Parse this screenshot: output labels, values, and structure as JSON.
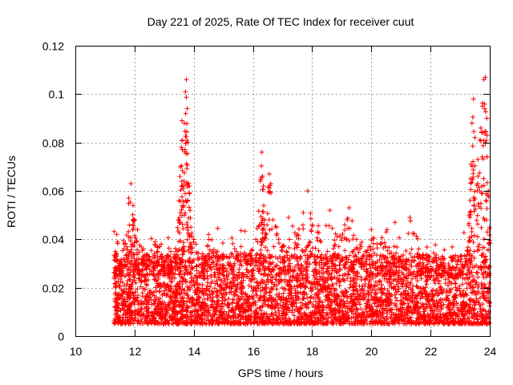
{
  "chart_data": {
    "type": "scatter",
    "title": "Day 221 of 2025, Rate Of TEC Index for receiver cuut",
    "xlabel": "GPS time / hours",
    "ylabel": "ROTI / TECUs",
    "xlim": [
      10,
      24
    ],
    "ylim": [
      0,
      0.12
    ],
    "x_ticks": [
      "10",
      "12",
      "14",
      "16",
      "18",
      "20",
      "22",
      "24"
    ],
    "y_ticks": [
      "0",
      "0.02",
      "0.04",
      "0.06",
      "0.08",
      "0.1",
      "0.12"
    ],
    "x_tick_values": [
      10,
      12,
      14,
      16,
      18,
      20,
      22,
      24
    ],
    "y_tick_values": [
      0,
      0.02,
      0.04,
      0.06,
      0.08,
      0.1,
      0.12
    ],
    "grid": true,
    "marker": "plus",
    "series": [
      {
        "name": "ROTI",
        "color": "#ff0000",
        "x_start": 11.3,
        "x_end": 24.0,
        "baseline_range": [
          0.005,
          0.03
        ],
        "points": [
          {
            "x": 11.35,
            "y": 0.035
          },
          {
            "x": 11.4,
            "y": 0.042
          },
          {
            "x": 11.5,
            "y": 0.03
          },
          {
            "x": 11.65,
            "y": 0.038
          },
          {
            "x": 11.8,
            "y": 0.057
          },
          {
            "x": 11.88,
            "y": 0.063
          },
          {
            "x": 11.95,
            "y": 0.054
          },
          {
            "x": 12.0,
            "y": 0.048
          },
          {
            "x": 12.1,
            "y": 0.044
          },
          {
            "x": 12.3,
            "y": 0.036
          },
          {
            "x": 12.5,
            "y": 0.033
          },
          {
            "x": 12.7,
            "y": 0.039
          },
          {
            "x": 12.9,
            "y": 0.038
          },
          {
            "x": 13.0,
            "y": 0.031
          },
          {
            "x": 13.2,
            "y": 0.028
          },
          {
            "x": 13.4,
            "y": 0.035
          },
          {
            "x": 13.5,
            "y": 0.056
          },
          {
            "x": 13.55,
            "y": 0.07
          },
          {
            "x": 13.6,
            "y": 0.089
          },
          {
            "x": 13.62,
            "y": 0.077
          },
          {
            "x": 13.68,
            "y": 0.088
          },
          {
            "x": 13.72,
            "y": 0.101
          },
          {
            "x": 13.75,
            "y": 0.106
          },
          {
            "x": 13.78,
            "y": 0.094
          },
          {
            "x": 13.8,
            "y": 0.08
          },
          {
            "x": 13.85,
            "y": 0.062
          },
          {
            "x": 13.9,
            "y": 0.045
          },
          {
            "x": 14.0,
            "y": 0.04
          },
          {
            "x": 14.3,
            "y": 0.034
          },
          {
            "x": 14.5,
            "y": 0.042
          },
          {
            "x": 14.8,
            "y": 0.035
          },
          {
            "x": 15.0,
            "y": 0.032
          },
          {
            "x": 15.3,
            "y": 0.034
          },
          {
            "x": 15.6,
            "y": 0.037
          },
          {
            "x": 15.9,
            "y": 0.034
          },
          {
            "x": 16.1,
            "y": 0.04
          },
          {
            "x": 16.25,
            "y": 0.064
          },
          {
            "x": 16.3,
            "y": 0.076
          },
          {
            "x": 16.35,
            "y": 0.062
          },
          {
            "x": 16.4,
            "y": 0.048
          },
          {
            "x": 16.55,
            "y": 0.067
          },
          {
            "x": 16.6,
            "y": 0.063
          },
          {
            "x": 16.8,
            "y": 0.045
          },
          {
            "x": 17.0,
            "y": 0.037
          },
          {
            "x": 17.2,
            "y": 0.049
          },
          {
            "x": 17.5,
            "y": 0.042
          },
          {
            "x": 17.7,
            "y": 0.051
          },
          {
            "x": 17.85,
            "y": 0.06
          },
          {
            "x": 18.0,
            "y": 0.046
          },
          {
            "x": 18.3,
            "y": 0.039
          },
          {
            "x": 18.6,
            "y": 0.052
          },
          {
            "x": 18.9,
            "y": 0.037
          },
          {
            "x": 19.1,
            "y": 0.046
          },
          {
            "x": 19.25,
            "y": 0.053
          },
          {
            "x": 19.5,
            "y": 0.04
          },
          {
            "x": 19.8,
            "y": 0.035
          },
          {
            "x": 20.0,
            "y": 0.044
          },
          {
            "x": 20.3,
            "y": 0.038
          },
          {
            "x": 20.5,
            "y": 0.043
          },
          {
            "x": 20.8,
            "y": 0.047
          },
          {
            "x": 21.0,
            "y": 0.033
          },
          {
            "x": 21.3,
            "y": 0.049
          },
          {
            "x": 21.6,
            "y": 0.036
          },
          {
            "x": 21.9,
            "y": 0.028
          },
          {
            "x": 22.2,
            "y": 0.027
          },
          {
            "x": 22.4,
            "y": 0.033
          },
          {
            "x": 22.6,
            "y": 0.025
          },
          {
            "x": 22.8,
            "y": 0.024
          },
          {
            "x": 23.0,
            "y": 0.027
          },
          {
            "x": 23.2,
            "y": 0.032
          },
          {
            "x": 23.3,
            "y": 0.05
          },
          {
            "x": 23.35,
            "y": 0.065
          },
          {
            "x": 23.4,
            "y": 0.088
          },
          {
            "x": 23.45,
            "y": 0.098
          },
          {
            "x": 23.5,
            "y": 0.082
          },
          {
            "x": 23.6,
            "y": 0.073
          },
          {
            "x": 23.7,
            "y": 0.086
          },
          {
            "x": 23.75,
            "y": 0.095
          },
          {
            "x": 23.8,
            "y": 0.106
          },
          {
            "x": 23.85,
            "y": 0.107
          },
          {
            "x": 23.9,
            "y": 0.09
          },
          {
            "x": 23.95,
            "y": 0.06
          },
          {
            "x": 24.0,
            "y": 0.045
          }
        ]
      }
    ]
  }
}
